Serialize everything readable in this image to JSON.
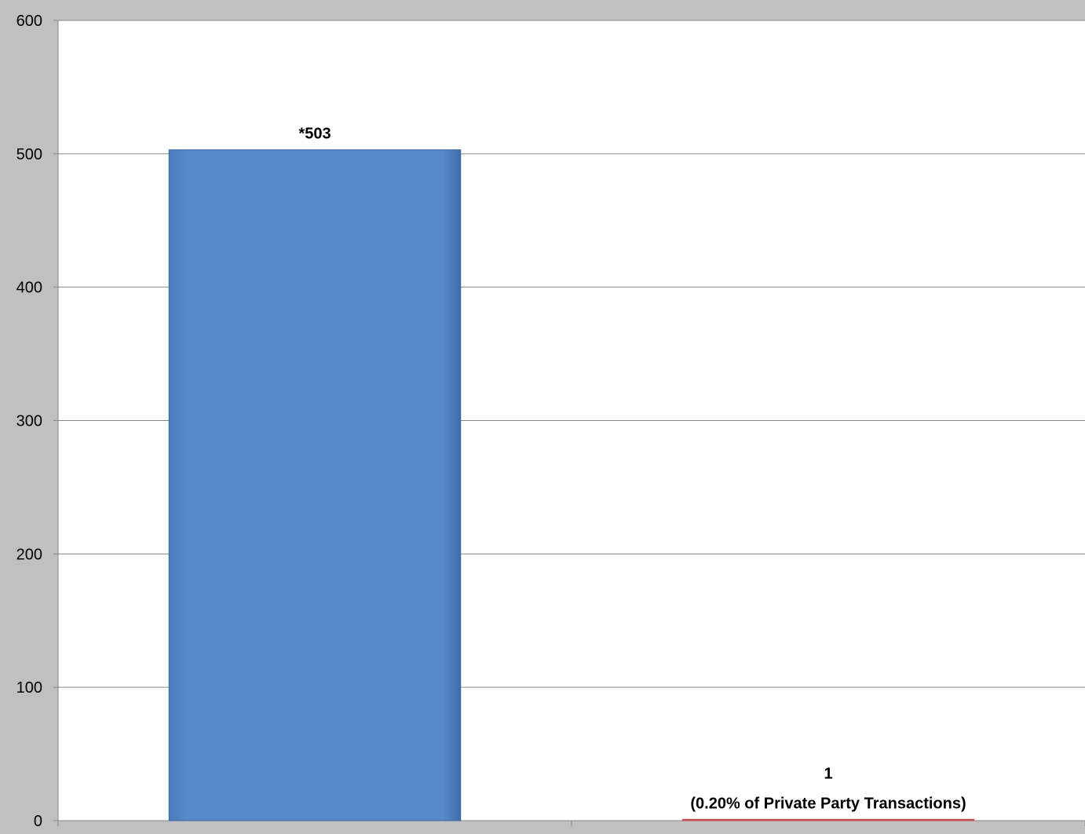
{
  "chart_data": {
    "type": "bar",
    "categories": [
      "",
      ""
    ],
    "values": [
      503,
      1
    ],
    "data_labels": [
      [
        "*503"
      ],
      [
        "1",
        "(0.20% of Private Party Transactions)"
      ]
    ],
    "colors": [
      "#5689c9",
      "#c0504d"
    ],
    "ylim": [
      0,
      600
    ],
    "yticks": [
      "0",
      "100",
      "200",
      "300",
      "400",
      "500",
      "600"
    ],
    "grid": true,
    "title": "",
    "xlabel": "",
    "ylabel": ""
  }
}
